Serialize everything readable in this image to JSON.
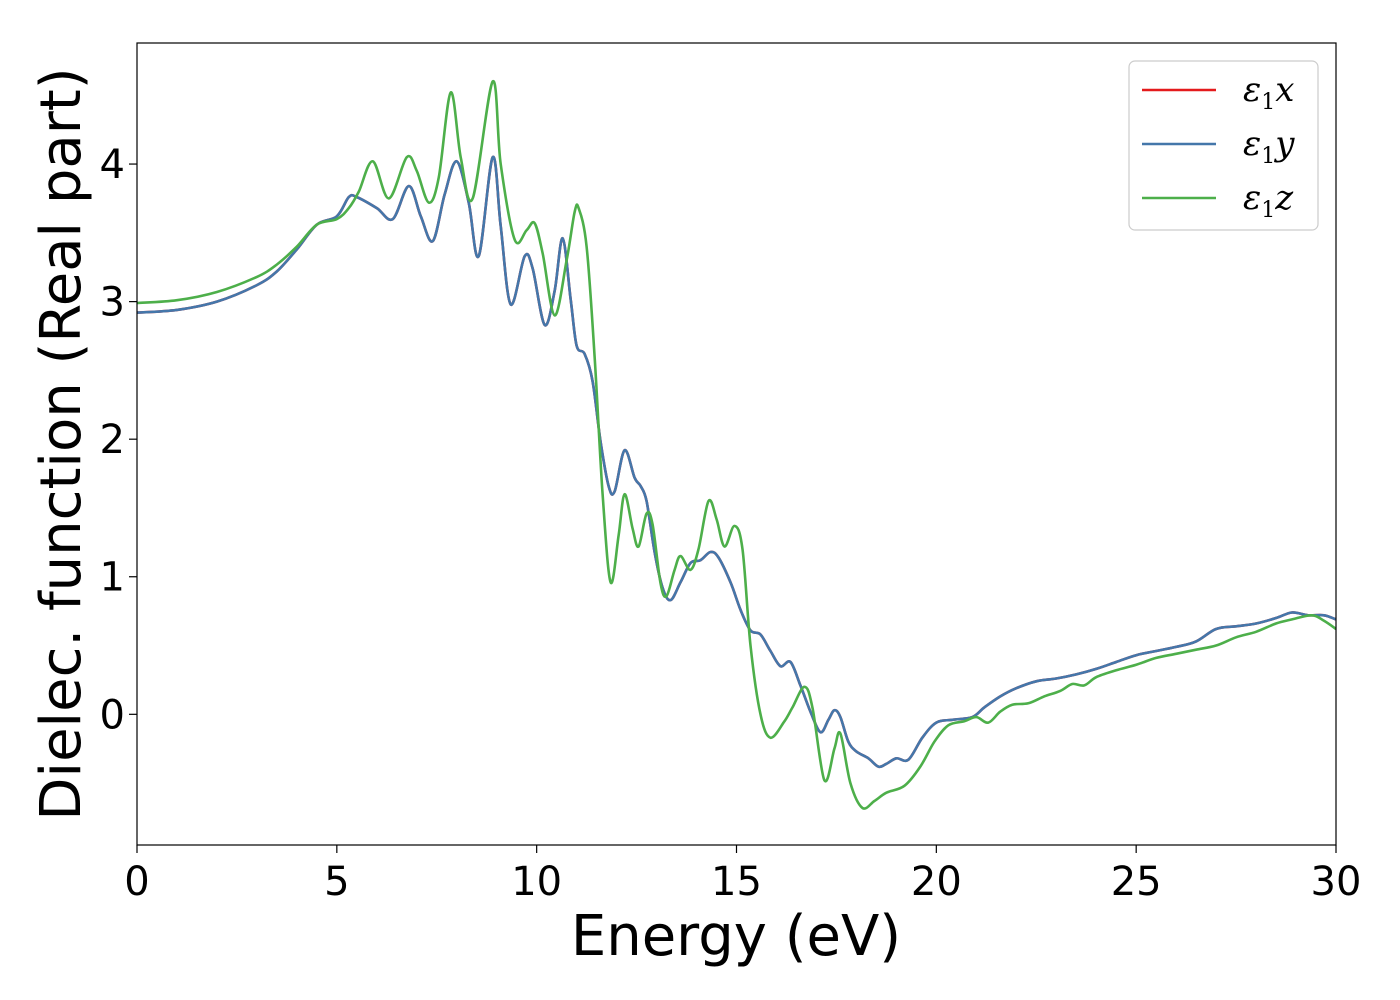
{
  "chart_data": {
    "type": "line",
    "xlabel": "Energy (eV)",
    "ylabel": "Dielec. function (Real part)",
    "xlim": [
      0,
      30
    ],
    "ylim": [
      -0.95,
      4.88
    ],
    "xticks": [
      0,
      5,
      10,
      15,
      20,
      25,
      30
    ],
    "xtick_labels": [
      "0",
      "5",
      "10",
      "15",
      "20",
      "25",
      "30"
    ],
    "yticks": [
      0,
      1,
      2,
      3,
      4
    ],
    "ytick_labels": [
      "0",
      "1",
      "2",
      "3",
      "4"
    ],
    "grid": false,
    "legend_position": "top-right",
    "series": [
      {
        "name": "ε1x",
        "legend": {
          "symbol": "ε",
          "subscript": "1",
          "var": "x"
        },
        "color": "#e41a1c",
        "points": [
          [
            0,
            2.92
          ],
          [
            1,
            2.94
          ],
          [
            2,
            3.0
          ],
          [
            3,
            3.12
          ],
          [
            3.5,
            3.22
          ],
          [
            4,
            3.38
          ],
          [
            4.5,
            3.56
          ],
          [
            5,
            3.62
          ],
          [
            5.3,
            3.76
          ],
          [
            5.5,
            3.76
          ],
          [
            6,
            3.68
          ],
          [
            6.4,
            3.6
          ],
          [
            6.8,
            3.84
          ],
          [
            7.1,
            3.62
          ],
          [
            7.4,
            3.44
          ],
          [
            7.7,
            3.78
          ],
          [
            8,
            4.02
          ],
          [
            8.3,
            3.72
          ],
          [
            8.55,
            3.33
          ],
          [
            8.9,
            4.05
          ],
          [
            9.1,
            3.55
          ],
          [
            9.35,
            2.98
          ],
          [
            9.7,
            3.33
          ],
          [
            9.9,
            3.24
          ],
          [
            10.2,
            2.83
          ],
          [
            10.45,
            3.08
          ],
          [
            10.65,
            3.46
          ],
          [
            10.85,
            3.02
          ],
          [
            11.0,
            2.68
          ],
          [
            11.2,
            2.62
          ],
          [
            11.4,
            2.42
          ],
          [
            11.6,
            1.98
          ],
          [
            11.8,
            1.66
          ],
          [
            11.95,
            1.62
          ],
          [
            12.2,
            1.92
          ],
          [
            12.45,
            1.72
          ],
          [
            12.6,
            1.66
          ],
          [
            12.75,
            1.55
          ],
          [
            12.95,
            1.18
          ],
          [
            13.15,
            0.92
          ],
          [
            13.35,
            0.83
          ],
          [
            13.6,
            0.96
          ],
          [
            13.85,
            1.1
          ],
          [
            14.1,
            1.12
          ],
          [
            14.35,
            1.18
          ],
          [
            14.55,
            1.14
          ],
          [
            14.85,
            0.96
          ],
          [
            15.1,
            0.76
          ],
          [
            15.35,
            0.61
          ],
          [
            15.6,
            0.58
          ],
          [
            15.85,
            0.46
          ],
          [
            16.1,
            0.35
          ],
          [
            16.35,
            0.38
          ],
          [
            16.6,
            0.21
          ],
          [
            16.85,
            0.02
          ],
          [
            17.1,
            -0.13
          ],
          [
            17.3,
            -0.04
          ],
          [
            17.45,
            0.03
          ],
          [
            17.6,
            -0.02
          ],
          [
            17.8,
            -0.2
          ],
          [
            18.0,
            -0.27
          ],
          [
            18.3,
            -0.32
          ],
          [
            18.55,
            -0.38
          ],
          [
            18.75,
            -0.36
          ],
          [
            19.0,
            -0.32
          ],
          [
            19.3,
            -0.33
          ],
          [
            19.65,
            -0.17
          ],
          [
            20.0,
            -0.06
          ],
          [
            20.4,
            -0.04
          ],
          [
            20.9,
            -0.02
          ],
          [
            21.2,
            0.05
          ],
          [
            21.6,
            0.13
          ],
          [
            22.0,
            0.19
          ],
          [
            22.5,
            0.24
          ],
          [
            23.0,
            0.26
          ],
          [
            23.5,
            0.29
          ],
          [
            24.0,
            0.33
          ],
          [
            24.5,
            0.38
          ],
          [
            25.0,
            0.43
          ],
          [
            25.5,
            0.46
          ],
          [
            26.0,
            0.49
          ],
          [
            26.5,
            0.53
          ],
          [
            27.0,
            0.62
          ],
          [
            27.5,
            0.64
          ],
          [
            28.0,
            0.66
          ],
          [
            28.5,
            0.7
          ],
          [
            28.9,
            0.74
          ],
          [
            29.3,
            0.72
          ],
          [
            29.7,
            0.72
          ],
          [
            30.0,
            0.69
          ]
        ]
      },
      {
        "name": "ε1y",
        "legend": {
          "symbol": "ε",
          "subscript": "1",
          "var": "y"
        },
        "color": "#4477aa",
        "points": [
          [
            0,
            2.92
          ],
          [
            1,
            2.94
          ],
          [
            2,
            3.0
          ],
          [
            3,
            3.12
          ],
          [
            3.5,
            3.22
          ],
          [
            4,
            3.38
          ],
          [
            4.5,
            3.56
          ],
          [
            5,
            3.62
          ],
          [
            5.3,
            3.76
          ],
          [
            5.5,
            3.76
          ],
          [
            6,
            3.68
          ],
          [
            6.4,
            3.6
          ],
          [
            6.8,
            3.84
          ],
          [
            7.1,
            3.62
          ],
          [
            7.4,
            3.44
          ],
          [
            7.7,
            3.78
          ],
          [
            8,
            4.02
          ],
          [
            8.3,
            3.72
          ],
          [
            8.55,
            3.33
          ],
          [
            8.9,
            4.05
          ],
          [
            9.1,
            3.55
          ],
          [
            9.35,
            2.98
          ],
          [
            9.7,
            3.33
          ],
          [
            9.9,
            3.24
          ],
          [
            10.2,
            2.83
          ],
          [
            10.45,
            3.08
          ],
          [
            10.65,
            3.46
          ],
          [
            10.85,
            3.02
          ],
          [
            11.0,
            2.68
          ],
          [
            11.2,
            2.62
          ],
          [
            11.4,
            2.42
          ],
          [
            11.6,
            1.98
          ],
          [
            11.8,
            1.66
          ],
          [
            11.95,
            1.62
          ],
          [
            12.2,
            1.92
          ],
          [
            12.45,
            1.72
          ],
          [
            12.6,
            1.66
          ],
          [
            12.75,
            1.55
          ],
          [
            12.95,
            1.18
          ],
          [
            13.15,
            0.92
          ],
          [
            13.35,
            0.83
          ],
          [
            13.6,
            0.96
          ],
          [
            13.85,
            1.1
          ],
          [
            14.1,
            1.12
          ],
          [
            14.35,
            1.18
          ],
          [
            14.55,
            1.14
          ],
          [
            14.85,
            0.96
          ],
          [
            15.1,
            0.76
          ],
          [
            15.35,
            0.61
          ],
          [
            15.6,
            0.58
          ],
          [
            15.85,
            0.46
          ],
          [
            16.1,
            0.35
          ],
          [
            16.35,
            0.38
          ],
          [
            16.6,
            0.21
          ],
          [
            16.85,
            0.02
          ],
          [
            17.1,
            -0.13
          ],
          [
            17.3,
            -0.04
          ],
          [
            17.45,
            0.03
          ],
          [
            17.6,
            -0.02
          ],
          [
            17.8,
            -0.2
          ],
          [
            18.0,
            -0.27
          ],
          [
            18.3,
            -0.32
          ],
          [
            18.55,
            -0.38
          ],
          [
            18.75,
            -0.36
          ],
          [
            19.0,
            -0.32
          ],
          [
            19.3,
            -0.33
          ],
          [
            19.65,
            -0.17
          ],
          [
            20.0,
            -0.06
          ],
          [
            20.4,
            -0.04
          ],
          [
            20.9,
            -0.02
          ],
          [
            21.2,
            0.05
          ],
          [
            21.6,
            0.13
          ],
          [
            22.0,
            0.19
          ],
          [
            22.5,
            0.24
          ],
          [
            23.0,
            0.26
          ],
          [
            23.5,
            0.29
          ],
          [
            24.0,
            0.33
          ],
          [
            24.5,
            0.38
          ],
          [
            25.0,
            0.43
          ],
          [
            25.5,
            0.46
          ],
          [
            26.0,
            0.49
          ],
          [
            26.5,
            0.53
          ],
          [
            27.0,
            0.62
          ],
          [
            27.5,
            0.64
          ],
          [
            28.0,
            0.66
          ],
          [
            28.5,
            0.7
          ],
          [
            28.9,
            0.74
          ],
          [
            29.3,
            0.72
          ],
          [
            29.7,
            0.72
          ],
          [
            30.0,
            0.69
          ]
        ]
      },
      {
        "name": "ε1z",
        "legend": {
          "symbol": "ε",
          "subscript": "1",
          "var": "z"
        },
        "color": "#4daf4a",
        "points": [
          [
            0,
            2.99
          ],
          [
            1,
            3.01
          ],
          [
            2,
            3.07
          ],
          [
            3,
            3.18
          ],
          [
            3.5,
            3.27
          ],
          [
            4,
            3.4
          ],
          [
            4.5,
            3.56
          ],
          [
            5,
            3.6
          ],
          [
            5.3,
            3.68
          ],
          [
            5.55,
            3.8
          ],
          [
            5.9,
            4.02
          ],
          [
            6.3,
            3.75
          ],
          [
            6.75,
            4.05
          ],
          [
            7.0,
            3.95
          ],
          [
            7.3,
            3.72
          ],
          [
            7.55,
            3.9
          ],
          [
            7.85,
            4.52
          ],
          [
            8.1,
            4.05
          ],
          [
            8.4,
            3.75
          ],
          [
            8.9,
            4.6
          ],
          [
            9.1,
            4.0
          ],
          [
            9.45,
            3.45
          ],
          [
            9.75,
            3.52
          ],
          [
            9.95,
            3.57
          ],
          [
            10.15,
            3.35
          ],
          [
            10.45,
            2.9
          ],
          [
            10.75,
            3.3
          ],
          [
            10.95,
            3.65
          ],
          [
            11.05,
            3.68
          ],
          [
            11.25,
            3.4
          ],
          [
            11.45,
            2.6
          ],
          [
            11.65,
            1.6
          ],
          [
            11.85,
            0.96
          ],
          [
            12.05,
            1.3
          ],
          [
            12.2,
            1.6
          ],
          [
            12.4,
            1.35
          ],
          [
            12.55,
            1.22
          ],
          [
            12.75,
            1.46
          ],
          [
            12.9,
            1.38
          ],
          [
            13.1,
            0.95
          ],
          [
            13.25,
            0.86
          ],
          [
            13.45,
            1.05
          ],
          [
            13.6,
            1.15
          ],
          [
            13.85,
            1.05
          ],
          [
            14.05,
            1.2
          ],
          [
            14.3,
            1.55
          ],
          [
            14.5,
            1.42
          ],
          [
            14.7,
            1.22
          ],
          [
            14.95,
            1.37
          ],
          [
            15.15,
            1.2
          ],
          [
            15.35,
            0.5
          ],
          [
            15.6,
            0.0
          ],
          [
            15.85,
            -0.17
          ],
          [
            16.2,
            -0.05
          ],
          [
            16.4,
            0.05
          ],
          [
            16.7,
            0.2
          ],
          [
            16.9,
            0.05
          ],
          [
            17.2,
            -0.48
          ],
          [
            17.45,
            -0.25
          ],
          [
            17.6,
            -0.14
          ],
          [
            17.85,
            -0.5
          ],
          [
            18.15,
            -0.68
          ],
          [
            18.45,
            -0.63
          ],
          [
            18.75,
            -0.57
          ],
          [
            19.2,
            -0.52
          ],
          [
            19.6,
            -0.38
          ],
          [
            19.95,
            -0.2
          ],
          [
            20.3,
            -0.08
          ],
          [
            20.7,
            -0.05
          ],
          [
            21.0,
            -0.02
          ],
          [
            21.3,
            -0.06
          ],
          [
            21.6,
            0.02
          ],
          [
            21.9,
            0.07
          ],
          [
            22.3,
            0.08
          ],
          [
            22.7,
            0.13
          ],
          [
            23.1,
            0.17
          ],
          [
            23.4,
            0.22
          ],
          [
            23.7,
            0.21
          ],
          [
            24.0,
            0.27
          ],
          [
            24.5,
            0.32
          ],
          [
            25.0,
            0.36
          ],
          [
            25.5,
            0.41
          ],
          [
            26.0,
            0.44
          ],
          [
            26.5,
            0.47
          ],
          [
            27.0,
            0.5
          ],
          [
            27.5,
            0.56
          ],
          [
            28.0,
            0.6
          ],
          [
            28.5,
            0.66
          ],
          [
            28.9,
            0.69
          ],
          [
            29.4,
            0.72
          ],
          [
            29.7,
            0.68
          ],
          [
            30.0,
            0.62
          ]
        ]
      }
    ]
  }
}
